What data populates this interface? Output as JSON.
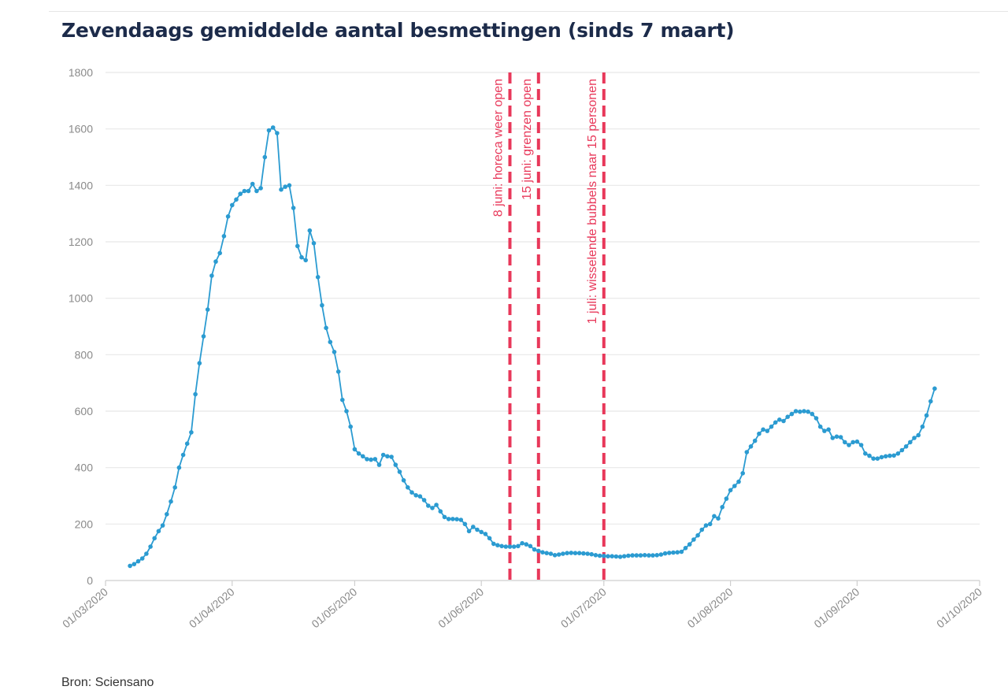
{
  "title": "Zevendaags gemiddelde aantal besmettingen (sinds 7 maart)",
  "source": "Bron: Sciensano",
  "colors": {
    "line": "#2b9bd1",
    "annotation": "#e8385a",
    "grid": "#e8e8e8",
    "title": "#1c2b4a"
  },
  "chart_data": {
    "type": "line",
    "title": "Zevendaags gemiddelde aantal besmettingen (sinds 7 maart)",
    "xlabel": "",
    "ylabel": "",
    "ylim": [
      0,
      1800
    ],
    "yticks": [
      0,
      200,
      400,
      600,
      800,
      1000,
      1200,
      1400,
      1600,
      1800
    ],
    "xrange": [
      "2020-03-01",
      "2020-10-01"
    ],
    "xtick_labels": [
      "01/03/2020",
      "01/04/2020",
      "01/05/2020",
      "01/06/2020",
      "01/07/2020",
      "01/08/2020",
      "01/09/2020",
      "01/10/2020"
    ],
    "grid": true,
    "start_date": "2020-03-07",
    "series": [
      {
        "values": [
          52,
          58,
          68,
          78,
          95,
          120,
          150,
          175,
          195,
          235,
          280,
          330,
          400,
          445,
          485,
          525,
          660,
          770,
          865,
          960,
          1080,
          1130,
          1160,
          1220,
          1290,
          1330,
          1350,
          1370,
          1380,
          1380,
          1405,
          1380,
          1390,
          1500,
          1595,
          1605,
          1585,
          1385,
          1395,
          1400,
          1320,
          1185,
          1145,
          1135,
          1240,
          1195,
          1075,
          975,
          895,
          845,
          810,
          740,
          640,
          600,
          545,
          465,
          450,
          440,
          430,
          428,
          430,
          410,
          445,
          440,
          438,
          410,
          385,
          355,
          330,
          312,
          302,
          298,
          285,
          265,
          257,
          268,
          245,
          225,
          218,
          218,
          217,
          215,
          200,
          175,
          190,
          180,
          172,
          165,
          150,
          130,
          125,
          122,
          120,
          120,
          120,
          122,
          132,
          128,
          122,
          110,
          105,
          100,
          97,
          95,
          90,
          92,
          95,
          97,
          98,
          97,
          97,
          96,
          95,
          93,
          90,
          88,
          87,
          86,
          86,
          85,
          84,
          86,
          88,
          89,
          89,
          89,
          90,
          89,
          89,
          90,
          92,
          96,
          98,
          99,
          100,
          102,
          115,
          128,
          145,
          160,
          180,
          195,
          200,
          228,
          220,
          260,
          290,
          320,
          335,
          350,
          380,
          455,
          475,
          495,
          520,
          535,
          530,
          545,
          560,
          570,
          565,
          580,
          590,
          600,
          598,
          600,
          598,
          590,
          575,
          545,
          530,
          535,
          505,
          510,
          508,
          490,
          480,
          490,
          492,
          480,
          450,
          442,
          432,
          432,
          437,
          440,
          442,
          443,
          450,
          462,
          475,
          490,
          505,
          515,
          545,
          585,
          635,
          680
        ]
      }
    ],
    "annotations": [
      {
        "date": "2020-06-08",
        "label": "8 juni: horeca weer open"
      },
      {
        "date": "2020-06-15",
        "label": "15 juni: grenzen open"
      },
      {
        "date": "2020-07-01",
        "label": "1 juli: wisselende bubbels naar 15 personen"
      }
    ]
  }
}
